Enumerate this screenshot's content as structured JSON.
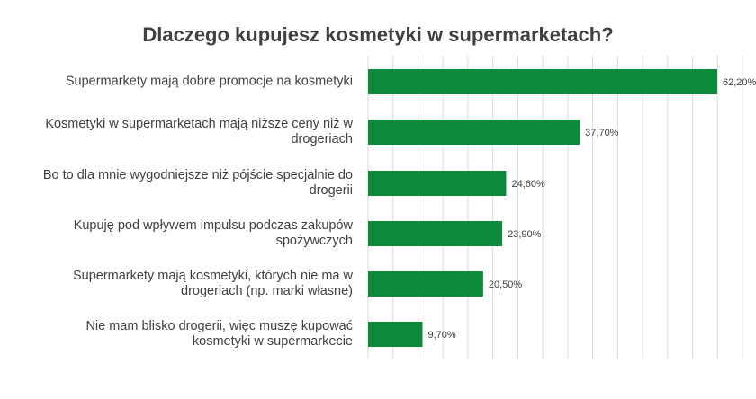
{
  "chart_data": {
    "type": "bar",
    "orientation": "horizontal",
    "title": "Dlaczego kupujesz kosmetyki w supermarketach?",
    "categories": [
      "Supermarkety mają dobre promocje na kosmetyki",
      "Kosmetyki w supermarketach mają niższe ceny niż w drogeriach",
      "Bo to dla mnie wygodniejsze niż pójście specjalnie do drogerii",
      "Kupuję pod wpływem impulsu podczas zakupów spożywczych",
      "Supermarkety mają kosmetyki, których nie ma w drogeriach (np. marki własne)",
      "Nie mam blisko drogerii, więc muszę kupować kosmetyki w supermarkecie"
    ],
    "category_lines": [
      [
        "Supermarkety mają dobre promocje na kosmetyki"
      ],
      [
        "Kosmetyki w supermarketach mają niższe ceny niż w",
        "drogeriach"
      ],
      [
        "Bo to dla mnie wygodniejsze niż pójście specjalnie do",
        "drogerii"
      ],
      [
        "Kupuję pod wpływem impulsu podczas zakupów",
        "spożywczych"
      ],
      [
        "Supermarkety mają kosmetyki, których nie ma w",
        "drogeriach (np. marki własne)"
      ],
      [
        "Nie mam blisko drogerii, więc muszę kupować",
        "kosmetyki w supermarkecie"
      ]
    ],
    "values": [
      62.2,
      37.7,
      24.6,
      23.9,
      20.5,
      9.7
    ],
    "data_labels": [
      "62,20%",
      "37,70%",
      "24,60%",
      "23,90%",
      "20,50%",
      "9,70%"
    ],
    "unit": "%",
    "xlim": [
      0,
      62.2
    ],
    "grid": true,
    "bar_color": "#0b8a3a",
    "grid_color": "#d9d9d9"
  }
}
